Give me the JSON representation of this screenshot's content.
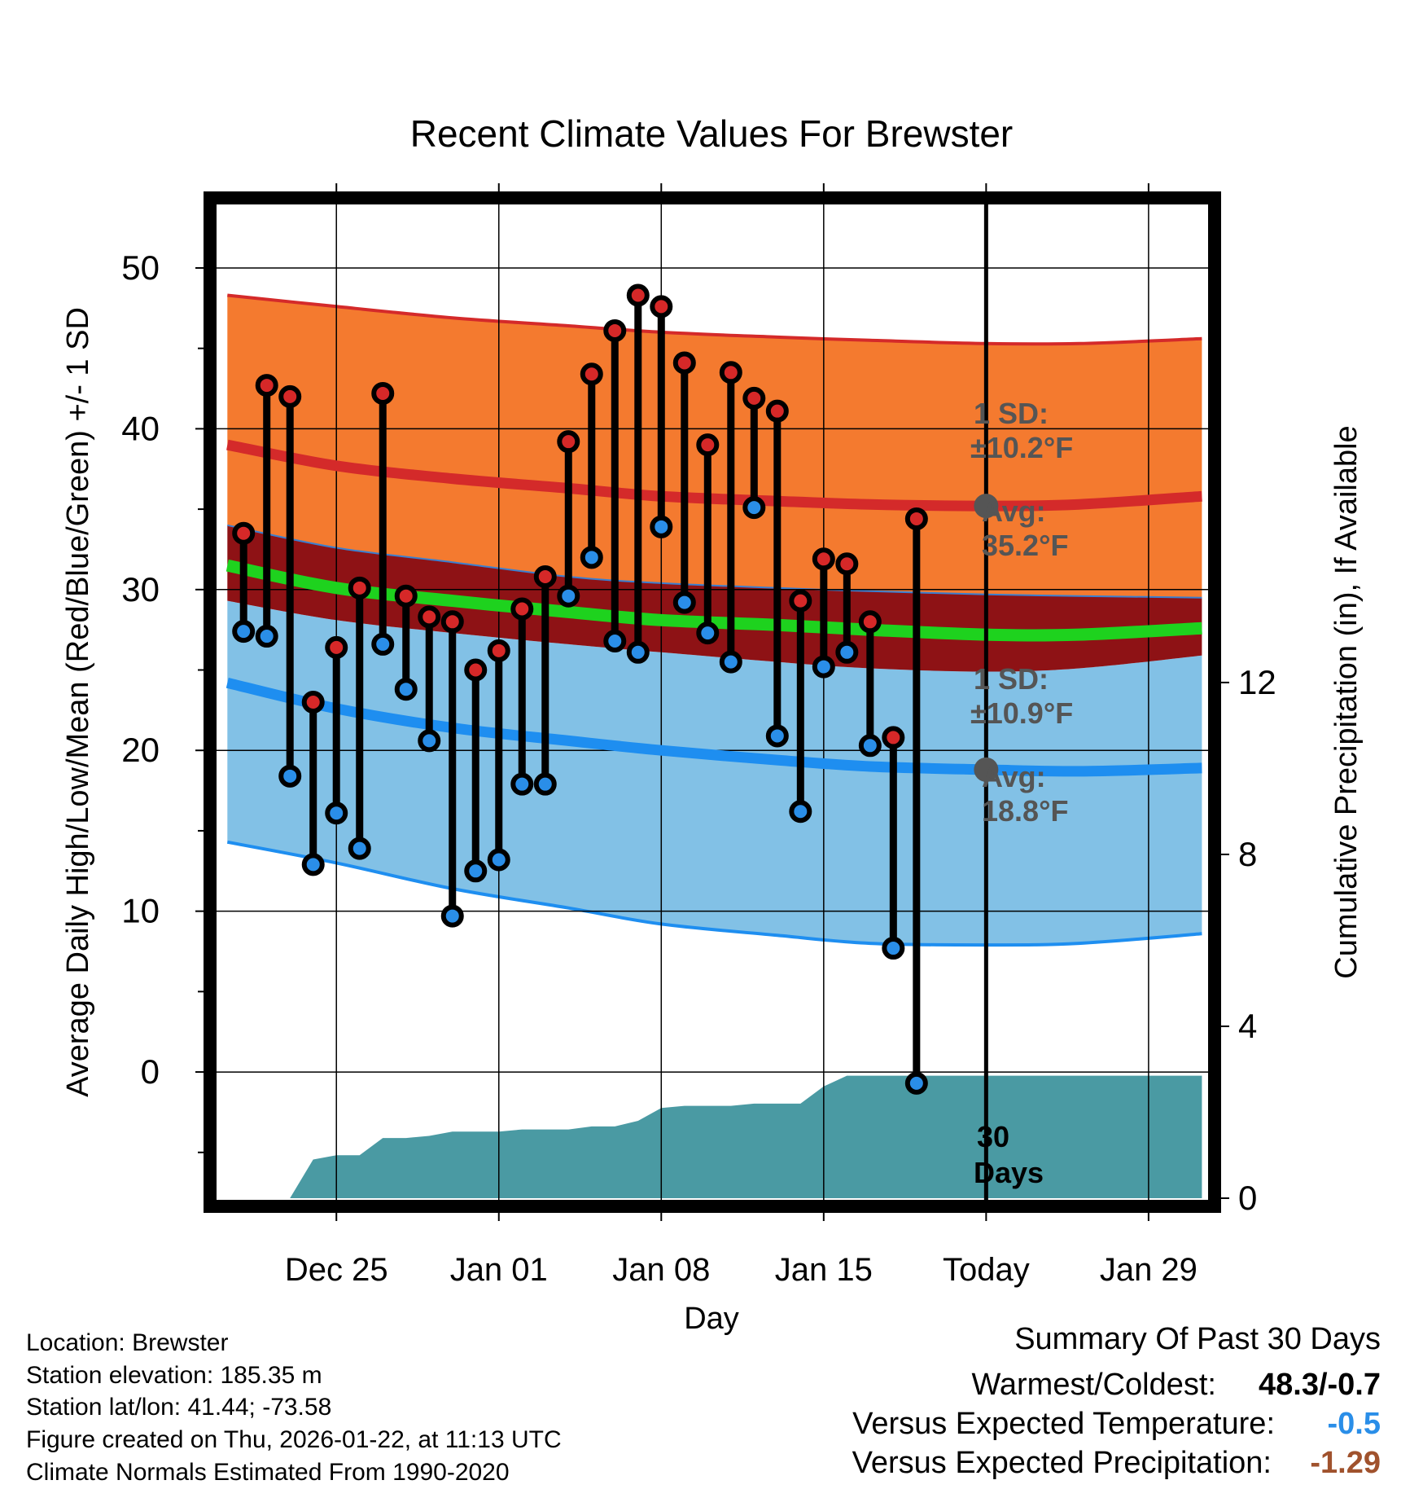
{
  "chart_data": {
    "type": "line",
    "title": "Recent Climate Values For Brewster",
    "xlabel": "Day",
    "ylabel": "Average Daily High/Low/Mean (Red/Blue/Green) +/- 1 SD",
    "y2label": "Cumulative Precipitation (in), If Available",
    "ylim": [
      -8,
      54
    ],
    "y2lim": [
      0,
      23.2
    ],
    "xlim": [
      -4.2,
      38.6
    ],
    "x_ticks": [
      {
        "day": 1,
        "label": "Dec 25"
      },
      {
        "day": 8,
        "label": "Jan 01"
      },
      {
        "day": 15,
        "label": "Jan 08"
      },
      {
        "day": 22,
        "label": "Jan 15"
      },
      {
        "day": 29,
        "label": "Today"
      },
      {
        "day": 36,
        "label": "Jan 29"
      }
    ],
    "y_ticks": [
      0,
      10,
      20,
      30,
      40,
      50
    ],
    "y_minor_ticks": [
      -5,
      5,
      15,
      25,
      35,
      45
    ],
    "y2_ticks": [
      0,
      4,
      8,
      12
    ],
    "today_day": 29,
    "normals_days": [
      -3.7,
      1,
      6,
      11,
      15,
      20,
      24,
      29,
      33,
      38.3
    ],
    "normals": {
      "high_upper": [
        48.3,
        47.6,
        46.9,
        46.4,
        46.0,
        45.7,
        45.5,
        45.3,
        45.3,
        45.6
      ],
      "high_avg": [
        39.0,
        37.7,
        36.9,
        36.3,
        35.8,
        35.5,
        35.3,
        35.2,
        35.3,
        35.8
      ],
      "high_lower": [
        34.0,
        32.6,
        31.7,
        30.8,
        30.4,
        30.1,
        29.9,
        29.7,
        29.6,
        29.5
      ],
      "mean": [
        31.5,
        30.1,
        29.3,
        28.6,
        28.1,
        27.8,
        27.5,
        27.2,
        27.2,
        27.6
      ],
      "low_upper": [
        29.3,
        28.1,
        27.3,
        26.6,
        26.1,
        25.5,
        25.1,
        24.9,
        25.1,
        25.9
      ],
      "low_avg": [
        24.2,
        22.6,
        21.4,
        20.6,
        20.0,
        19.4,
        19.0,
        18.8,
        18.7,
        18.9
      ],
      "low_lower": [
        14.3,
        13.0,
        11.4,
        10.2,
        9.2,
        8.5,
        8.0,
        7.9,
        8.0,
        8.6
      ]
    },
    "series": [
      {
        "name": "Daily High",
        "color": "#d62828",
        "values": [
          33.5,
          42.7,
          42.0,
          23.0,
          26.4,
          30.1,
          42.2,
          29.6,
          28.3,
          28.0,
          25.0,
          26.2,
          28.8,
          30.8,
          39.2,
          43.4,
          46.1,
          48.3,
          47.6,
          44.1,
          39.0,
          43.5,
          41.9,
          41.1,
          29.3,
          31.9,
          31.6,
          28.0,
          20.8,
          34.4
        ]
      },
      {
        "name": "Daily Low",
        "color": "#2a8ee8",
        "values": [
          27.4,
          27.1,
          18.4,
          12.9,
          16.1,
          13.9,
          26.6,
          23.8,
          20.6,
          9.7,
          12.5,
          13.2,
          17.9,
          17.9,
          29.6,
          32.0,
          26.8,
          26.1,
          33.9,
          29.2,
          27.3,
          25.5,
          35.1,
          20.9,
          16.2,
          25.2,
          26.1,
          20.3,
          7.7,
          -0.7
        ]
      }
    ],
    "days": [
      -3,
      -2,
      -1,
      0,
      1,
      2,
      3,
      4,
      5,
      6,
      7,
      8,
      9,
      10,
      11,
      12,
      13,
      14,
      15,
      16,
      17,
      18,
      19,
      20,
      21,
      22,
      23,
      24,
      25,
      26
    ],
    "precip": {
      "name": "Cumulative Precipitation",
      "days": [
        -3.7,
        -3,
        -1,
        0,
        1,
        2,
        3,
        4,
        5,
        6,
        7,
        8,
        9,
        10,
        11,
        12,
        13,
        14,
        15,
        16,
        17,
        18,
        19,
        20,
        21,
        22,
        23,
        24,
        25,
        26,
        27,
        28,
        29,
        30,
        38.3
      ],
      "values": [
        0.0,
        0.0,
        0.0,
        0.9,
        1.0,
        1.0,
        1.4,
        1.4,
        1.45,
        1.55,
        1.55,
        1.55,
        1.6,
        1.6,
        1.6,
        1.67,
        1.67,
        1.8,
        2.1,
        2.15,
        2.15,
        2.15,
        2.2,
        2.2,
        2.2,
        2.6,
        2.85,
        2.85,
        2.85,
        2.85,
        2.85,
        2.85,
        2.85,
        2.85,
        2.85
      ]
    },
    "annotations": {
      "high_sd_label": "1 SD:",
      "high_sd_value": "±10.2°F",
      "high_avg_label": "Avg:",
      "high_avg_value": "35.2°F",
      "low_sd_label": "1 SD:",
      "low_sd_value": "±10.9°F",
      "low_avg_label": "Avg:",
      "low_avg_value": "18.8°F",
      "window_number": "30",
      "window_label": "Days"
    },
    "colors": {
      "high_band": "#f47a2f",
      "high_avg": "#d42a2a",
      "overlap_band": "#8e1215",
      "mean": "#1ed21e",
      "low_band": "#82c1e6",
      "low_avg": "#1e8ef0",
      "precip": "#4a9aa3",
      "annotation": "#555555"
    }
  },
  "footer": {
    "location": "Location: Brewster",
    "elevation": "Station elevation: 185.35 m",
    "latlon": "Station lat/lon: 41.44; -73.58",
    "created": "Figure created on Thu, 2026-01-22, at 11:13 UTC",
    "normals": "Climate Normals Estimated From 1990-2020"
  },
  "summary": {
    "title": "Summary Of Past 30 Days",
    "warmest_label": "Warmest/Coldest:",
    "warmest_value": "48.3/-0.7",
    "temp_label": "Versus Expected Temperature:",
    "temp_value": "-0.5",
    "temp_color": "#2a8ee8",
    "precip_label": "Versus Expected Precipitation:",
    "precip_value": "-1.29",
    "precip_color": "#a0522d"
  }
}
